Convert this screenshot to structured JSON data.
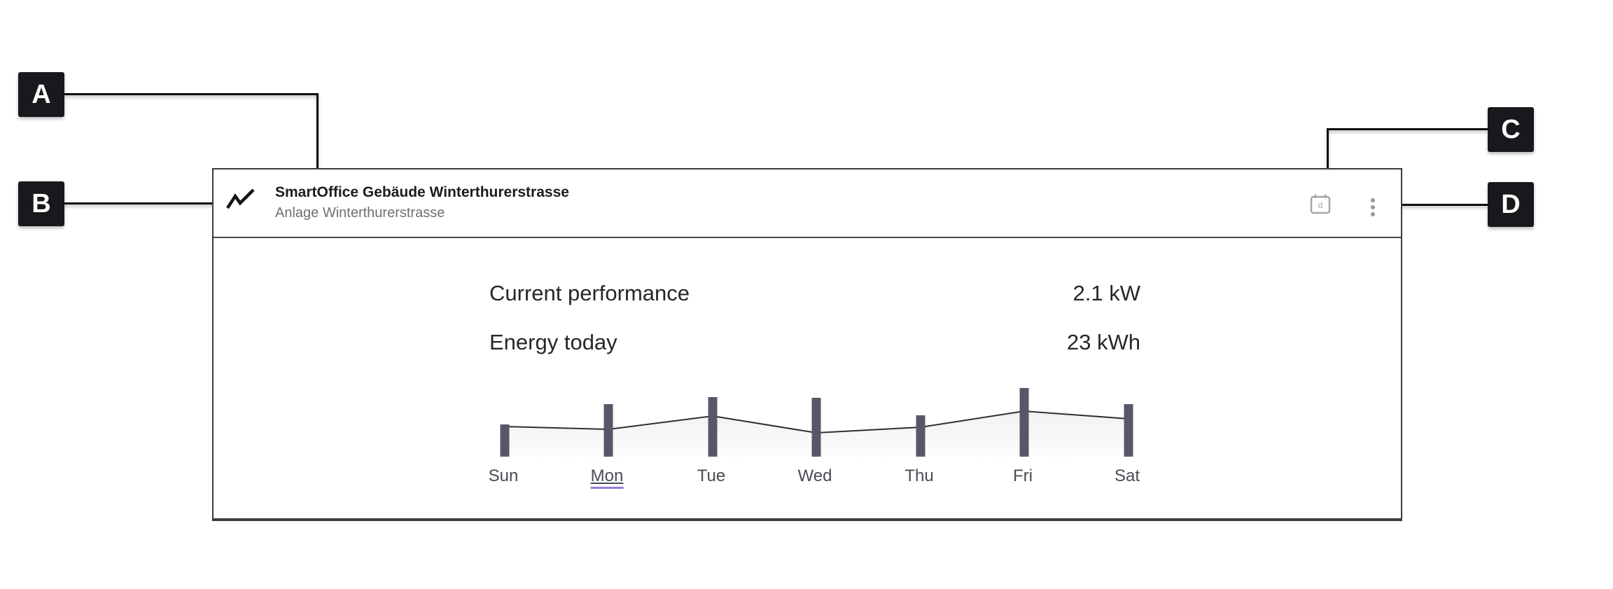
{
  "annotations": {
    "a": {
      "letter": "A"
    },
    "b": {
      "letter": "B"
    },
    "c": {
      "letter": "C"
    },
    "d": {
      "letter": "D"
    }
  },
  "card": {
    "title": "SmartOffice Gebäude Winterthurerstrasse",
    "subtitle": "Anlage Winterthurerstrasse",
    "header_icons": {
      "activity_icon": "activity-zigzag-icon",
      "calendar_icon": "calendar-date-icon",
      "calendar_icon_letter": "d",
      "menu_icon": "kebab-vertical-icon"
    },
    "metrics": [
      {
        "label": "Current performance",
        "value": "2.1 kW"
      },
      {
        "label": "Energy today",
        "value": "23 kWh"
      }
    ]
  },
  "chart_data": {
    "type": "bar",
    "title": "",
    "xlabel": "",
    "ylabel": "",
    "categories": [
      "Sun",
      "Mon",
      "Tue",
      "Wed",
      "Thu",
      "Fri",
      "Sat"
    ],
    "series": [
      {
        "name": "daily-energy-bars",
        "type": "bar",
        "values": [
          46,
          75,
          85,
          84,
          59,
          98,
          75
        ]
      },
      {
        "name": "trend-line",
        "type": "line",
        "values": [
          43,
          39,
          58,
          34,
          42,
          65,
          54
        ]
      }
    ],
    "selected_category": "Mon",
    "ylim": [
      0,
      112
    ],
    "grid": false,
    "legend": "none",
    "bar_color": "#5a5669",
    "line_color": "#2e2f33",
    "area_fill_top": "rgba(60,60,75,0.07)",
    "area_fill_bottom": "rgba(60,60,75,0.01)",
    "selected_underline_color": "#9a7bd8"
  }
}
